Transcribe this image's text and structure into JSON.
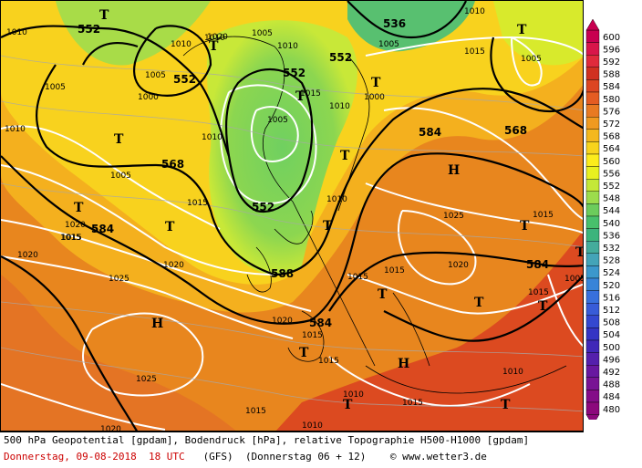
{
  "title": "500 hPa Geopotential [gpdam], Bodendruck [hPa], relative Topographie H500-H1000 [gpdam]",
  "footer": {
    "date_label": "Donnerstag, 09-08-2018  18 UTC",
    "model": "(GFS)",
    "run": "(Donnerstag 06 + 12)",
    "copyright": "© www.wetter3.de"
  },
  "legend": {
    "values": [
      "600",
      "596",
      "592",
      "588",
      "584",
      "580",
      "576",
      "572",
      "568",
      "564",
      "560",
      "556",
      "552",
      "548",
      "544",
      "540",
      "536",
      "532",
      "528",
      "524",
      "520",
      "516",
      "512",
      "508",
      "504",
      "500",
      "496",
      "492",
      "488",
      "484",
      "480"
    ],
    "colors": [
      "#c80050",
      "#d8164a",
      "#e02a3c",
      "#d03020",
      "#dc4622",
      "#e45c22",
      "#e87a22",
      "#f09a20",
      "#f4b81e",
      "#f8d41c",
      "#fcec1c",
      "#e8f020",
      "#c4e838",
      "#9cdc4c",
      "#6ccc5c",
      "#48c06c",
      "#3cb47c",
      "#44ac9c",
      "#44a4b8",
      "#3c98cc",
      "#3884d8",
      "#3870dc",
      "#385cd8",
      "#3448d0",
      "#3434c4",
      "#4028b8",
      "#5420ac",
      "#6818a0",
      "#781494",
      "#840c88",
      "#8c087c"
    ]
  },
  "pressure_labels": [
    "1010",
    "1010",
    "1005",
    "1000",
    "1005",
    "1010",
    "1010",
    "1005",
    "1010",
    "1015",
    "1010",
    "1020",
    "1005",
    "1005",
    "1000",
    "1005",
    "1010",
    "1015",
    "1005",
    "1010",
    "1015",
    "1010",
    "1015",
    "1020",
    "1015",
    "1020",
    "1020",
    "1025",
    "1015",
    "1025",
    "1015",
    "1020",
    "1015",
    "1015",
    "1010",
    "1010",
    "1015",
    "1020",
    "1015",
    "1015",
    "1005",
    "1015",
    "1025",
    "1020",
    "1010"
  ],
  "geopot_labels": [
    "552",
    "552",
    "552",
    "536",
    "552",
    "568",
    "552",
    "584",
    "568",
    "584",
    "584",
    "588",
    "584"
  ],
  "pressure_centers": [
    "T",
    "T",
    "T",
    "T",
    "T",
    "T",
    "T",
    "T",
    "T",
    "T",
    "T",
    "T",
    "T",
    "T",
    "T",
    "H",
    "H",
    "H",
    "T",
    "T",
    "T"
  ]
}
